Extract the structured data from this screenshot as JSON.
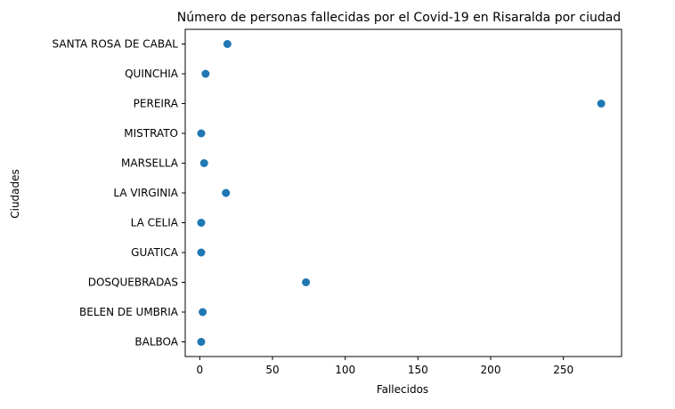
{
  "chart_data": {
    "type": "scatter",
    "title": "Número de personas fallecidas por el Covid-19 en Risaralda por ciudad",
    "xlabel": "Fallecidos",
    "ylabel": "Ciudades",
    "xlim": [
      -10,
      290
    ],
    "xticks": [
      0,
      50,
      100,
      150,
      200,
      250
    ],
    "xtick_labels": [
      "0",
      "50",
      "100",
      "150",
      "200",
      "250"
    ],
    "categories": [
      "BALBOA",
      "BELEN DE UMBRIA",
      "DOSQUEBRADAS",
      "GUATICA",
      "LA CELIA",
      "LA VIRGINIA",
      "MARSELLA",
      "MISTRATO",
      "PEREIRA",
      "QUINCHIA",
      "SANTA ROSA DE CABAL"
    ],
    "values": [
      1,
      2,
      73,
      1,
      1,
      18,
      3,
      1,
      276,
      4,
      19
    ],
    "marker_color": "#1f77b4",
    "grid": false,
    "legend": false
  }
}
